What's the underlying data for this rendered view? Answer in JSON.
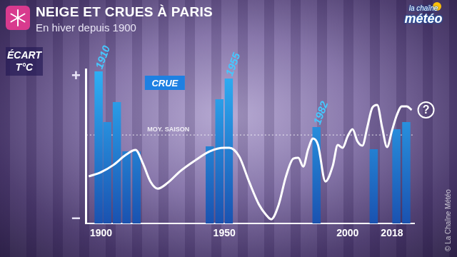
{
  "chart_data": {
    "type": "bar",
    "title": "NEIGE ET CRUES À PARIS",
    "subtitle": "En hiver depuis 1900",
    "ylabel": "ÉCART T°C",
    "series": [
      {
        "name": "CRUE",
        "type": "bar",
        "color": "#2fb0f5",
        "x": [
          1899,
          1902.5,
          1906.4,
          1910.3,
          1914.4,
          1944.1,
          1948,
          1951.8,
          1987.4,
          2010.6,
          2019.8,
          2023.8
        ],
        "values": [
          1.07,
          0.36,
          0.64,
          -0.05,
          -0.05,
          0.02,
          0.68,
          0.97,
          0.29,
          -0.02,
          0.26,
          0.36
        ]
      },
      {
        "type": "line",
        "color": "#ffffff",
        "marker": "none",
        "line_style": "solid",
        "x": [
          1895,
          1900,
          1905,
          1910,
          1914,
          1917,
          1920,
          1923,
          1927,
          1932,
          1938,
          1944,
          1950,
          1952,
          1956,
          1960,
          1964,
          1967,
          1969,
          1972,
          1975,
          1978,
          1980,
          1982,
          1984,
          1986,
          1988,
          1991,
          1994,
          1996,
          1998,
          2000,
          2002,
          2004,
          2006,
          2008,
          2010,
          2012,
          2014,
          2016,
          2018,
          2020,
          2022,
          2024,
          2026
        ],
        "values": [
          -0.4,
          -0.34,
          -0.24,
          -0.1,
          -0.03,
          -0.22,
          -0.47,
          -0.57,
          -0.49,
          -0.33,
          -0.18,
          -0.05,
          0.0,
          0.0,
          -0.12,
          -0.47,
          -0.79,
          -0.94,
          -1.0,
          -0.8,
          -0.4,
          -0.15,
          -0.14,
          -0.26,
          -0.02,
          0.13,
          0.04,
          -0.47,
          -0.25,
          0.04,
          0.0,
          0.16,
          0.26,
          0.09,
          0.03,
          0.29,
          0.56,
          0.6,
          0.29,
          0.01,
          0.24,
          0.46,
          0.58,
          0.58,
          0.53
        ]
      }
    ],
    "xlim": [
      1894,
      2027
    ],
    "xticks": [
      1900,
      1950,
      2000,
      2018
    ],
    "ylim": [
      -1.06,
      1.1
    ],
    "yticks": [
      {
        "value": 1,
        "label": "+"
      },
      {
        "value": -1,
        "label": "−"
      }
    ],
    "grid": false,
    "legend": "top left",
    "annotations": [
      {
        "text": "1910",
        "x": 1899,
        "y": 1.07
      },
      {
        "text": "1955",
        "x": 1951.8,
        "y": 0.97
      },
      {
        "text": "1982",
        "x": 1987.4,
        "y": 0.29
      },
      {
        "text": "MOY. SAISON",
        "y": 0.18,
        "line_style": "dashed"
      },
      {
        "text": "?",
        "x": 2026,
        "y": 0.53,
        "marker": "circle"
      }
    ],
    "logo": "la chaîne météo",
    "source": "© La Chaîne Météo"
  }
}
